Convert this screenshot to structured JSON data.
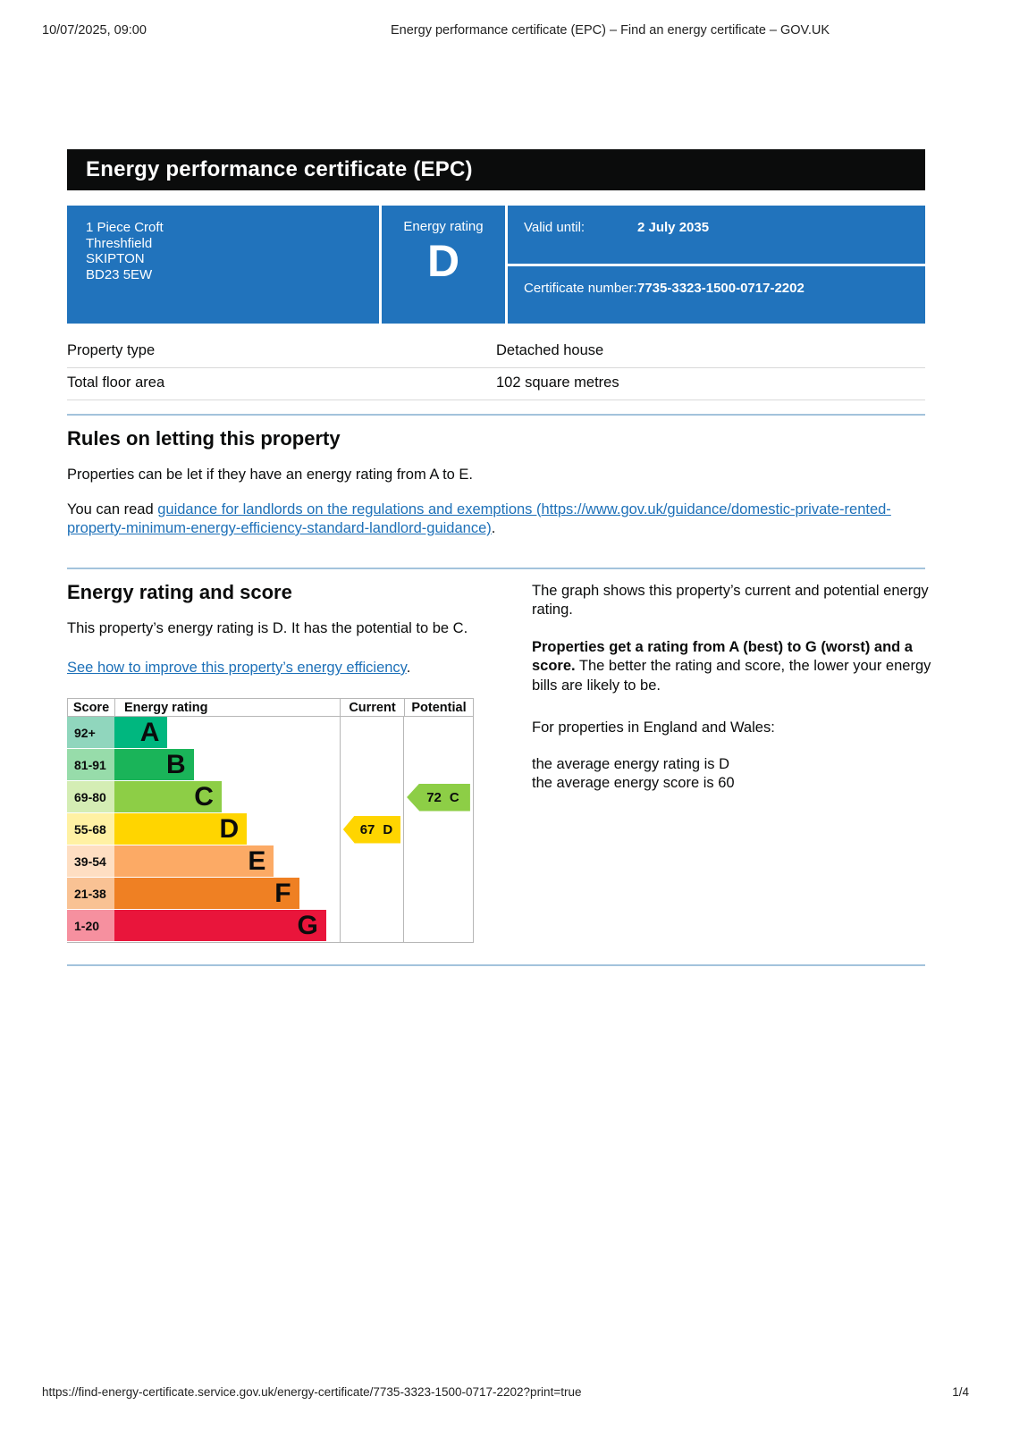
{
  "browser_header": {
    "datetime": "10/07/2025, 09:00",
    "title": "Energy performance certificate (EPC) – Find an energy certificate – GOV.UK"
  },
  "banner": {
    "title": "Energy performance certificate (EPC)"
  },
  "summary_panel": {
    "panel_color": "#2173bc",
    "address_lines": [
      "1 Piece Croft",
      "Threshfield",
      "SKIPTON",
      "BD23 5EW"
    ],
    "energy_rating_label": "Energy rating",
    "energy_rating": "D",
    "valid_until_label": "Valid until:",
    "valid_until": "2 July 2035",
    "certificate_number_label": "Certificate number:",
    "certificate_number": "7735-3323-1500-0717-2202"
  },
  "property_table": {
    "rows": [
      {
        "label": "Property type",
        "value": "Detached house"
      },
      {
        "label": "Total floor area",
        "value": "102 square metres"
      }
    ]
  },
  "rules_section": {
    "heading": "Rules on letting this property",
    "paragraph1": "Properties can be let if they have an energy rating from A to E.",
    "paragraph2_prefix": "You can read ",
    "paragraph2_link": "guidance for landlords on the regulations and exemptions (https://www.gov.uk/guidance/domestic-private-rented-property-minimum-energy-efficiency-standard-landlord-guidance)",
    "paragraph2_suffix": "."
  },
  "rating_section": {
    "heading": "Energy rating and score",
    "paragraph1": "This property’s energy rating is D. It has the potential to be C.",
    "improve_link": "See how to improve this property’s energy efficiency",
    "improve_suffix": ".",
    "right_para1": "The graph shows this property’s current and potential energy rating.",
    "right_para2_bold": "Properties get a rating from A (best) to G (worst) and a score.",
    "right_para2_rest": " The better the rating and score, the lower your energy bills are likely to be.",
    "right_para3": "For properties in England and Wales:",
    "right_avg_rating": "the average energy rating is D",
    "right_avg_score": "the average energy score is 60"
  },
  "chart_data": {
    "type": "bar",
    "title": "Energy rating and score chart",
    "headers": [
      "Score",
      "Energy rating",
      "Current",
      "Potential"
    ],
    "bands": [
      {
        "score": "92+",
        "letter": "A",
        "color": "#00b77f",
        "tint": "#90d6bd",
        "width_pct": 23.6
      },
      {
        "score": "81-91",
        "letter": "B",
        "color": "#1ab459",
        "tint": "#97dcaa",
        "width_pct": 35.2
      },
      {
        "score": "69-80",
        "letter": "C",
        "color": "#8dce46",
        "tint": "#d4edb4",
        "width_pct": 47.6
      },
      {
        "score": "55-68",
        "letter": "D",
        "color": "#ffd500",
        "tint": "#fff1a3",
        "width_pct": 58.8
      },
      {
        "score": "39-54",
        "letter": "E",
        "color": "#fcaa65",
        "tint": "#fedec2",
        "width_pct": 70.8
      },
      {
        "score": "21-38",
        "letter": "F",
        "color": "#ef8023",
        "tint": "#f9c294",
        "width_pct": 82.0
      },
      {
        "score": "1-20",
        "letter": "G",
        "color": "#e9153b",
        "tint": "#f6909f",
        "width_pct": 94.0
      }
    ],
    "current": {
      "score": "67",
      "letter": "D",
      "band": "D",
      "color": "#ffd500"
    },
    "potential": {
      "score": "72",
      "letter": "C",
      "band": "C",
      "color": "#8dce46"
    }
  },
  "footer": {
    "url": "https://find-energy-certificate.service.gov.uk/energy-certificate/7735-3323-1500-0717-2202?print=true",
    "page": "1/4"
  }
}
